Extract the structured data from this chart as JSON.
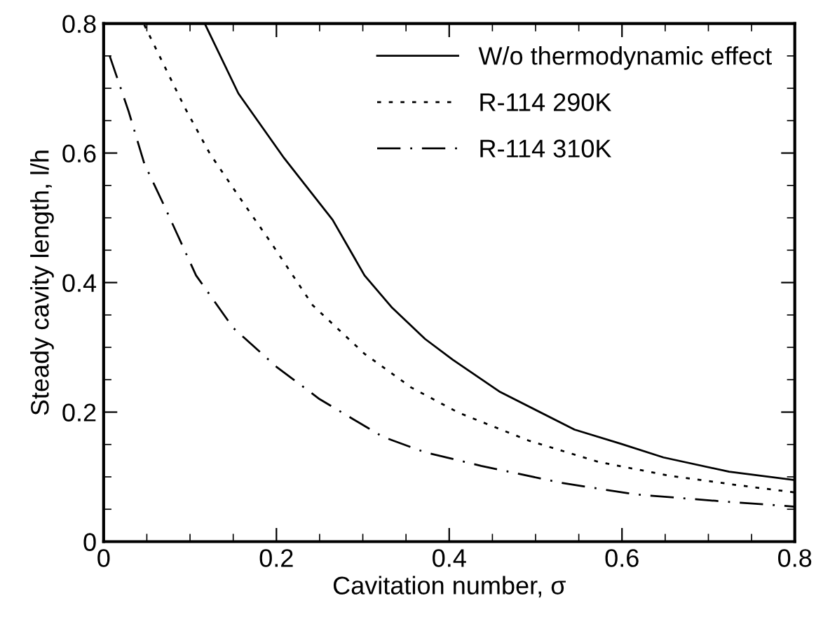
{
  "chart_data": {
    "type": "line",
    "xlabel": "Cavitation number, σ",
    "ylabel": "Steady cavity length, l/h",
    "xlim": [
      0,
      0.8
    ],
    "ylim": [
      0,
      0.8
    ],
    "xticks": [
      0,
      0.2,
      0.4,
      0.6,
      0.8
    ],
    "yticks": [
      0,
      0.2,
      0.4,
      0.6,
      0.8
    ],
    "grid": false,
    "legend": "top right",
    "marker": "none",
    "series": [
      {
        "name": "W/o thermodynamic effect",
        "color": "#000000",
        "line_style": "solid",
        "x": [
          0.117,
          0.156,
          0.209,
          0.265,
          0.302,
          0.334,
          0.372,
          0.404,
          0.459,
          0.545,
          0.599,
          0.648,
          0.724,
          0.8
        ],
        "values": [
          0.8,
          0.692,
          0.592,
          0.497,
          0.411,
          0.361,
          0.313,
          0.281,
          0.231,
          0.173,
          0.151,
          0.13,
          0.108,
          0.095
        ]
      },
      {
        "name": "R-114 290K",
        "color": "#000000",
        "line_style": "dotted",
        "x": [
          0.047,
          0.094,
          0.123,
          0.156,
          0.193,
          0.242,
          0.302,
          0.356,
          0.411,
          0.492,
          0.573,
          0.654,
          0.735,
          0.8
        ],
        "values": [
          0.798,
          0.67,
          0.599,
          0.534,
          0.463,
          0.365,
          0.29,
          0.238,
          0.199,
          0.156,
          0.123,
          0.102,
          0.087,
          0.076
        ]
      },
      {
        "name": "R-114 310K",
        "color": "#000000",
        "line_style": "dashdot",
        "x": [
          0.007,
          0.029,
          0.047,
          0.07,
          0.107,
          0.15,
          0.2,
          0.25,
          0.323,
          0.372,
          0.437,
          0.529,
          0.615,
          0.708,
          0.8
        ],
        "values": [
          0.75,
          0.664,
          0.584,
          0.519,
          0.411,
          0.33,
          0.27,
          0.22,
          0.162,
          0.138,
          0.117,
          0.091,
          0.073,
          0.063,
          0.054
        ]
      }
    ]
  }
}
